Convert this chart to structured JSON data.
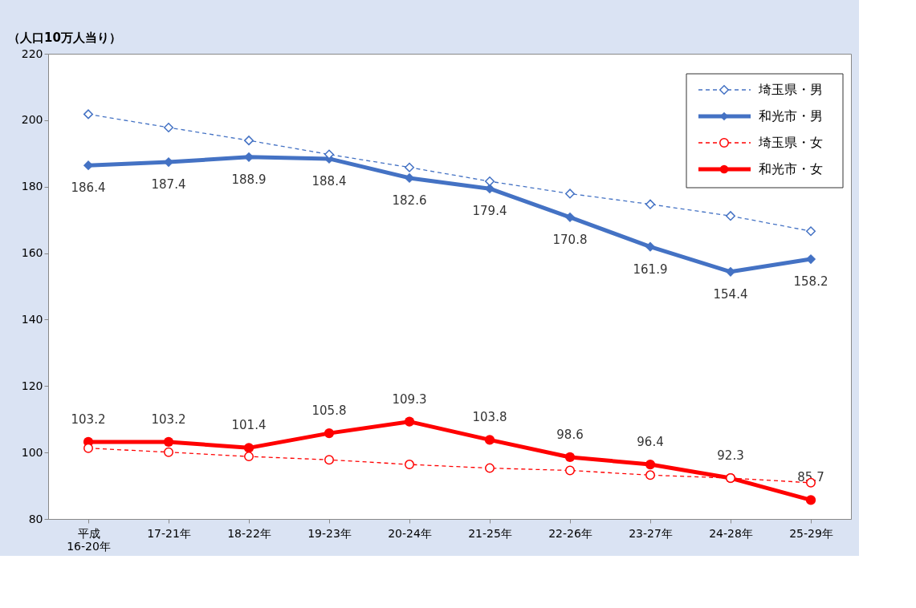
{
  "chart_data": {
    "type": "line",
    "ylabel": "（人口10万人当り）",
    "categories": [
      "平成\n16-20年",
      "17-21年",
      "18-22年",
      "19-23年",
      "20-24年",
      "21-25年",
      "22-26年",
      "23-27年",
      "24-28年",
      "25-29年"
    ],
    "series": [
      {
        "name": "埼玉県・男",
        "color": "#4472c4",
        "line_style": "dashed",
        "marker": "diamond",
        "values": [
          201.8,
          197.8,
          193.9,
          189.7,
          185.8,
          181.6,
          177.9,
          174.7,
          171.2,
          166.6
        ]
      },
      {
        "name": "和光市・男",
        "color": "#4472c4",
        "line_style": "solid",
        "marker": "diamond",
        "values": [
          186.4,
          187.4,
          188.9,
          188.4,
          182.6,
          179.4,
          170.8,
          161.9,
          154.4,
          158.2
        ],
        "value_labels": [
          "186.4",
          "187.4",
          "188.9",
          "188.4",
          "182.6",
          "179.4",
          "170.8",
          "161.9",
          "154.4",
          "158.2"
        ]
      },
      {
        "name": "埼玉県・女",
        "color": "#ff0000",
        "line_style": "dashed",
        "marker": "circle",
        "values": [
          101.3,
          100.1,
          98.8,
          97.8,
          96.4,
          95.3,
          94.6,
          93.2,
          92.3,
          90.9
        ]
      },
      {
        "name": "和光市・女",
        "color": "#ff0000",
        "line_style": "solid",
        "marker": "circle",
        "values": [
          103.2,
          103.2,
          101.4,
          105.8,
          109.3,
          103.8,
          98.6,
          96.4,
          92.3,
          85.7
        ],
        "value_labels": [
          "103.2",
          "103.2",
          "101.4",
          "105.8",
          "109.3",
          "103.8",
          "98.6",
          "96.4",
          "92.3",
          "85.7"
        ]
      }
    ],
    "ylim": [
      80,
      220
    ],
    "yticks": [
      80,
      100,
      120,
      140,
      160,
      180,
      200,
      220
    ],
    "grid": false,
    "legend": "top right"
  }
}
